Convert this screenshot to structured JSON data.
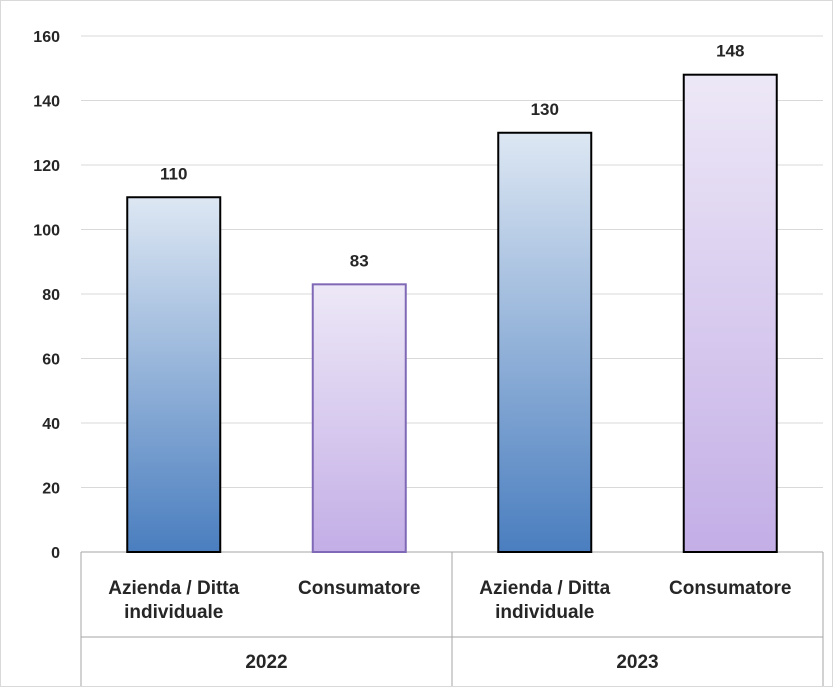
{
  "chart_data": {
    "type": "bar",
    "groups": [
      {
        "label": "2022",
        "categories": [
          "Azienda / Ditta individuale",
          "Consumatore"
        ],
        "values": [
          110,
          83
        ]
      },
      {
        "label": "2023",
        "categories": [
          "Azienda / Ditta individuale",
          "Consumatore"
        ],
        "values": [
          130,
          148
        ]
      }
    ],
    "category_lines": {
      "Azienda / Ditta individuale": [
        "Azienda / Ditta",
        "individuale"
      ],
      "Consumatore": [
        "Consumatore"
      ]
    },
    "colors": {
      "Azienda / Ditta individuale": {
        "top": "#dde7f3",
        "bottom": "#4a7ebf"
      },
      "Consumatore": {
        "top": "#ede8f7",
        "bottom": "#c3aee6"
      }
    },
    "title": "",
    "xlabel": "",
    "ylabel": "",
    "ylim": [
      0,
      160
    ],
    "y_ticks": [
      0,
      20,
      40,
      60,
      80,
      100,
      120,
      140,
      160
    ],
    "grid": true,
    "data_labels": true
  }
}
